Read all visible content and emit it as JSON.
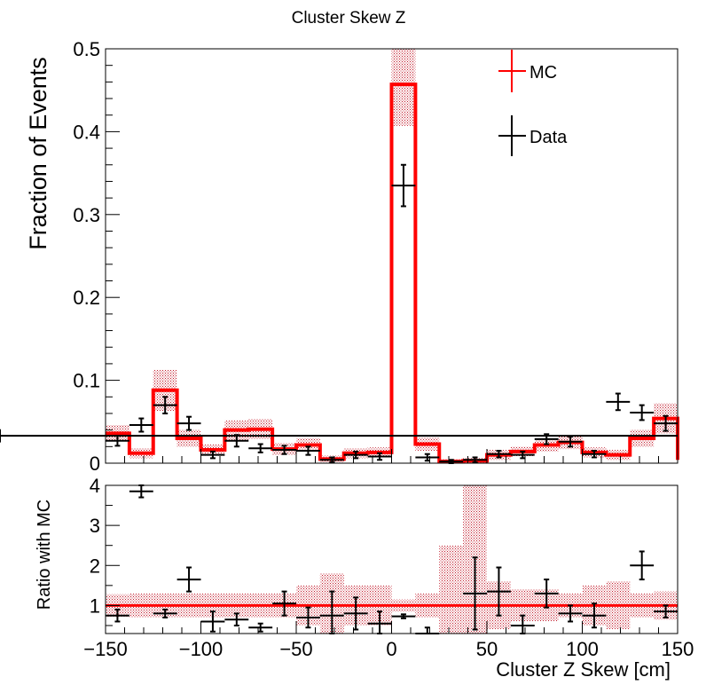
{
  "chart_data": [
    {
      "panel": "main",
      "type": "histogram",
      "title": "Cluster Skew Z",
      "ylabel": "Fraction of Events",
      "xlim": [
        -150,
        150
      ],
      "ylim": [
        0,
        0.5
      ],
      "yticks": [
        0,
        0.1,
        0.2,
        0.3,
        0.4,
        0.5
      ],
      "yticklabels": [
        "0",
        "0.1",
        "0.2",
        "0.3",
        "0.4",
        "0.5"
      ],
      "bin_edges": [
        -150,
        -137.5,
        -125,
        -112.5,
        -100,
        -87.5,
        -75,
        -62.5,
        -50,
        -37.5,
        -25,
        -12.5,
        0,
        12.5,
        25,
        37.5,
        50,
        62.5,
        75,
        87.5,
        100,
        112.5,
        125,
        137.5,
        150
      ],
      "series": [
        {
          "name": "MC",
          "color": "#ff0000",
          "style": "step",
          "values": [
            0.036,
            0.012,
            0.088,
            0.03,
            0.016,
            0.04,
            0.041,
            0.017,
            0.022,
            0.005,
            0.012,
            0.013,
            0.457,
            0.023,
            0.002,
            0.003,
            0.01,
            0.014,
            0.022,
            0.025,
            0.013,
            0.01,
            0.03,
            0.054,
            0.004
          ],
          "errors": [
            0.01,
            0.006,
            0.025,
            0.01,
            0.007,
            0.012,
            0.012,
            0.007,
            0.008,
            0.004,
            0.006,
            0.006,
            0.05,
            0.008,
            0.003,
            0.003,
            0.006,
            0.006,
            0.008,
            0.008,
            0.006,
            0.006,
            0.01,
            0.018,
            0.004
          ]
        },
        {
          "name": "Data",
          "color": "#000000",
          "style": "errorbar",
          "values": [
            0.027,
            0.046,
            0.07,
            0.048,
            0.01,
            0.027,
            0.018,
            0.016,
            0.015,
            0.004,
            0.01,
            0.008,
            0.335,
            0.007,
            0.002,
            0.004,
            0.011,
            0.01,
            0.029,
            0.026,
            0.011,
            0.074,
            0.061,
            0.048,
            0.033
          ],
          "errors": [
            0.006,
            0.008,
            0.01,
            0.008,
            0.004,
            0.007,
            0.005,
            0.005,
            0.005,
            0.003,
            0.004,
            0.004,
            0.025,
            0.004,
            0.002,
            0.003,
            0.004,
            0.004,
            0.006,
            0.006,
            0.004,
            0.01,
            0.009,
            0.009,
            0.008
          ]
        }
      ],
      "legend": {
        "position": "top-right",
        "entries": [
          "MC",
          "Data"
        ]
      }
    },
    {
      "panel": "ratio",
      "type": "errorbar",
      "ylabel": "Ratio with MC",
      "xlabel": "Cluster Z Skew [cm]",
      "xlim": [
        -150,
        150
      ],
      "ylim": [
        0.3,
        4
      ],
      "xticks": [
        -150,
        -100,
        -50,
        0,
        50,
        100,
        150
      ],
      "xticklabels": [
        "−150",
        "−100",
        "−50",
        "0",
        "50",
        "100",
        "150"
      ],
      "yticks": [
        1,
        2,
        3,
        4
      ],
      "yticklabels": [
        "1",
        "2",
        "3",
        "4"
      ],
      "reference_line": 1,
      "band_halfwidth": [
        0.28,
        0.3,
        0.3,
        0.3,
        0.3,
        0.3,
        0.3,
        0.3,
        0.5,
        0.8,
        0.5,
        0.5,
        0.15,
        0.3,
        1.5,
        3.5,
        0.6,
        0.4,
        0.4,
        0.3,
        0.5,
        0.6,
        0.3,
        0.35,
        1.0
      ],
      "ratio": [
        0.75,
        3.85,
        0.8,
        1.65,
        0.6,
        0.65,
        0.45,
        1.05,
        0.7,
        0.75,
        0.8,
        0.55,
        0.73,
        0.3,
        null,
        1.3,
        1.35,
        0.5,
        1.3,
        0.8,
        0.75,
        null,
        2.0,
        0.85,
        null
      ],
      "ratio_errors": [
        0.15,
        0.15,
        0.1,
        0.3,
        0.25,
        0.15,
        0.1,
        0.3,
        0.25,
        0.6,
        0.4,
        0.3,
        0.05,
        0.15,
        null,
        0.9,
        0.6,
        0.25,
        0.35,
        0.2,
        0.3,
        null,
        0.35,
        0.15,
        null
      ]
    }
  ]
}
